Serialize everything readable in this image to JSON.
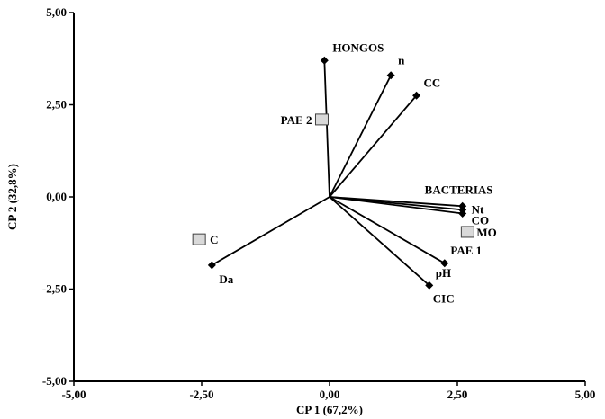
{
  "chart_data": {
    "type": "scatter",
    "subtype": "biplot",
    "xlabel": "CP 1 (67,2%)",
    "ylabel": "CP 2 (32,8%)",
    "xlim": [
      -5,
      5
    ],
    "ylim": [
      -5,
      5
    ],
    "x_ticks": [
      "-5,00",
      "-2,50",
      "0,00",
      "2,50",
      "5,00"
    ],
    "y_ticks": [
      "-5,00",
      "-2,50",
      "0,00",
      "2,50",
      "5,00"
    ],
    "grid": false,
    "origin": [
      0,
      0
    ],
    "colors": {
      "vector": "#000000",
      "site_fill": "#d9d9d9",
      "site_stroke": "#404040"
    },
    "vectors": [
      {
        "name": "HONGOS",
        "x": -0.1,
        "y": 3.7
      },
      {
        "name": "n",
        "x": 1.2,
        "y": 3.3
      },
      {
        "name": "CC",
        "x": 1.7,
        "y": 2.75
      },
      {
        "name": "BACTERIAS",
        "x": 2.6,
        "y": -0.25
      },
      {
        "name": "Nt",
        "x": 2.6,
        "y": -0.35
      },
      {
        "name": "CO",
        "x": 2.6,
        "y": -0.45
      },
      {
        "name": "pH",
        "x": 2.25,
        "y": -1.8
      },
      {
        "name": "CIC",
        "x": 1.95,
        "y": -2.4
      },
      {
        "name": "Da",
        "x": -2.3,
        "y": -1.85
      }
    ],
    "sites": [
      {
        "name": "PAE 2",
        "x": -0.15,
        "y": 2.1
      },
      {
        "name": "PAE 1",
        "x": 2.7,
        "y": -0.95
      },
      {
        "name": "MO",
        "x": 2.7,
        "y": -0.95
      },
      {
        "name": "C",
        "x": -2.55,
        "y": -1.15
      }
    ]
  }
}
